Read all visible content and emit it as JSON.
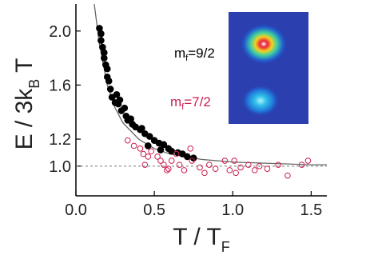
{
  "chart_data": {
    "type": "scatter",
    "xlabel": [
      "T / T",
      "F"
    ],
    "ylabel": [
      "E / 3k",
      "B",
      " T"
    ],
    "xlim": [
      0,
      1.6
    ],
    "ylim": [
      0.78,
      2.2
    ],
    "xticks": [
      {
        "value": 0,
        "label": "0.0"
      },
      0.5,
      {
        "value": 1,
        "label": "1.0"
      },
      1.5
    ],
    "yticks": [
      {
        "value": 1,
        "label": "1.0"
      },
      1.2,
      1.6,
      {
        "value": 2,
        "label": "2.0"
      }
    ],
    "hline": 1.0,
    "curve": {
      "color": "#666666",
      "x": [
        0.117,
        0.15,
        0.2,
        0.25,
        0.3,
        0.4,
        0.5,
        0.6,
        0.8,
        1.0,
        1.5,
        1.6
      ],
      "values": [
        2.2,
        1.9,
        1.6,
        1.43,
        1.32,
        1.2,
        1.13,
        1.09,
        1.05,
        1.03,
        1.01,
        1.01
      ]
    },
    "series": [
      {
        "name": [
          "m",
          "f",
          "=9/2"
        ],
        "color": "#000000",
        "marker": "filled",
        "x": [
          0.15,
          0.16,
          0.16,
          0.17,
          0.18,
          0.18,
          0.19,
          0.2,
          0.2,
          0.21,
          0.22,
          0.23,
          0.26,
          0.25,
          0.27,
          0.28,
          0.29,
          0.31,
          0.32,
          0.33,
          0.35,
          0.36,
          0.38,
          0.41,
          0.42,
          0.44,
          0.47,
          0.5,
          0.53,
          0.56,
          0.59,
          0.61,
          0.65,
          0.68,
          0.71,
          0.75,
          0.54,
          0.46
        ],
        "values": [
          2.02,
          1.98,
          1.93,
          1.88,
          1.84,
          1.8,
          1.75,
          1.72,
          1.66,
          1.63,
          1.57,
          1.51,
          1.53,
          1.47,
          1.46,
          1.49,
          1.41,
          1.43,
          1.37,
          1.34,
          1.35,
          1.31,
          1.29,
          1.27,
          1.28,
          1.24,
          1.22,
          1.19,
          1.17,
          1.16,
          1.13,
          1.11,
          1.1,
          1.09,
          1.07,
          1.06,
          1.12,
          1.15
        ]
      },
      {
        "name": [
          "m",
          "f",
          "=7/2"
        ],
        "color": "#cc1f4f",
        "marker": "open",
        "x": [
          0.33,
          0.37,
          0.41,
          0.43,
          0.46,
          0.48,
          0.52,
          0.54,
          0.56,
          0.59,
          0.61,
          0.64,
          0.66,
          0.69,
          0.73,
          0.74,
          0.79,
          0.82,
          0.85,
          0.89,
          0.95,
          0.98,
          1.01,
          1.02,
          1.05,
          1.1,
          1.14,
          1.17,
          1.22,
          1.29,
          1.35,
          1.44,
          1.48,
          0.44,
          0.58
        ],
        "values": [
          1.19,
          1.15,
          1.13,
          1.09,
          1.07,
          1.11,
          1.07,
          1.04,
          1.01,
          0.98,
          1.04,
          1.09,
          1.01,
          0.97,
          1.13,
          1.04,
          0.99,
          0.95,
          1.01,
          0.98,
          1.04,
          0.97,
          1.04,
          0.95,
          0.99,
          1.01,
          0.97,
          1.0,
          0.98,
          1.01,
          0.93,
          1.01,
          1.04,
          1.01,
          0.97
        ]
      }
    ]
  }
}
